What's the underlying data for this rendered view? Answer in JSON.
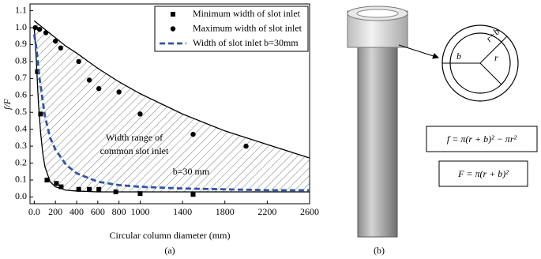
{
  "chart_data": {
    "type": "scatter",
    "xlabel": "Circular column diameter (mm)",
    "ylabel": "f/F",
    "caption": "(a)",
    "xlim": [
      -40,
      2600
    ],
    "xticks": [
      {
        "value": 0,
        "label": "0.0"
      },
      200,
      400,
      600,
      800,
      1000,
      1400,
      1800,
      2200,
      2600
    ],
    "ylim": [
      -0.04,
      1.14
    ],
    "yticks": [
      {
        "value": 0,
        "label": "0.0"
      },
      0.1,
      0.2,
      0.3,
      0.4,
      0.5,
      0.6,
      0.7,
      0.8,
      0.9,
      {
        "value": 1,
        "label": "1.0"
      },
      1.1
    ],
    "legend": "upper right",
    "series": [
      {
        "name": "Minimum width of slot inlet",
        "marker": "square",
        "color": "#000000",
        "x": [
          30,
          60,
          120,
          209,
          254,
          420,
          520,
          610,
          770,
          1000,
          1500
        ],
        "values": [
          0.74,
          0.49,
          0.1,
          0.08,
          0.06,
          0.045,
          0.045,
          0.045,
          0.03,
          0.02,
          0.015
        ]
      },
      {
        "name": "Maximum width of slot inlet",
        "marker": "circle",
        "color": "#000000",
        "x": [
          10,
          50,
          110,
          200,
          250,
          420,
          520,
          610,
          800,
          1000,
          1500,
          2000
        ],
        "values": [
          1.0,
          0.99,
          0.97,
          0.92,
          0.88,
          0.8,
          0.69,
          0.64,
          0.62,
          0.49,
          0.37,
          0.3
        ]
      },
      {
        "name": "Width of slot inlet b=30mm",
        "marker": "dashed-line",
        "color": "#2f55a4",
        "x": [
          0,
          20,
          50,
          100,
          150,
          200,
          300,
          400,
          600,
          800,
          1000,
          1400,
          1800,
          2200,
          2600
        ],
        "values": [
          0.96,
          0.88,
          0.7,
          0.48,
          0.35,
          0.28,
          0.19,
          0.14,
          0.09,
          0.07,
          0.06,
          0.05,
          0.045,
          0.04,
          0.04
        ]
      }
    ],
    "fit_curves": [
      {
        "color": "#000000",
        "x": [
          0,
          100,
          200,
          300,
          400,
          600,
          800,
          1000,
          1200,
          1400,
          1600,
          1800,
          2000,
          2200,
          2400,
          2600
        ],
        "values": [
          1.04,
          0.99,
          0.94,
          0.89,
          0.85,
          0.76,
          0.68,
          0.61,
          0.55,
          0.49,
          0.44,
          0.39,
          0.35,
          0.31,
          0.27,
          0.23
        ]
      },
      {
        "color": "#000000",
        "x": [
          0,
          20,
          40,
          60,
          80,
          100,
          150,
          200,
          300,
          400,
          600,
          1000,
          1500,
          2000,
          2600
        ],
        "values": [
          1.0,
          0.8,
          0.55,
          0.38,
          0.26,
          0.18,
          0.09,
          0.06,
          0.04,
          0.035,
          0.03,
          0.03,
          0.03,
          0.03,
          0.03
        ]
      }
    ],
    "annotations": [
      "Width range of",
      "common slot inlet",
      "b=30 mm"
    ]
  },
  "diagram": {
    "caption": "(b)",
    "labels": [
      "b",
      "r+b",
      "r"
    ],
    "formulas": [
      "f = π(r + b)² − πr²",
      "F = π(r + b)²"
    ]
  }
}
